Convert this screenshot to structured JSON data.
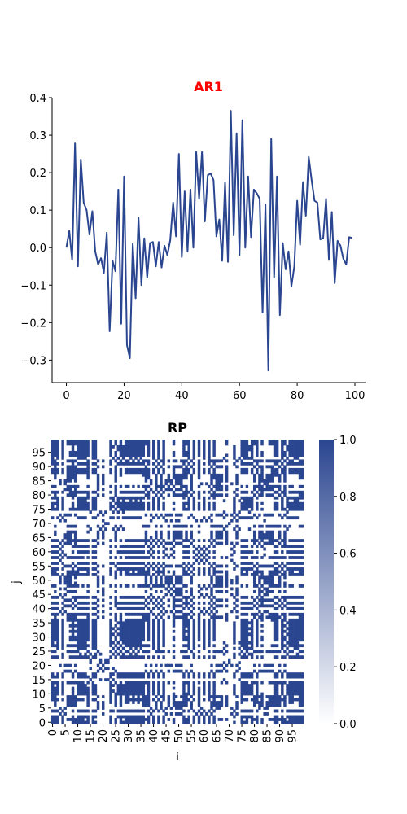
{
  "chart_data": [
    {
      "type": "line",
      "title": "AR1",
      "title_color": "#ff0000",
      "line_color": "#2b4690",
      "xlabel": "",
      "ylabel": "",
      "xlim": [
        -4.95,
        103.95
      ],
      "ylim": [
        -0.36,
        0.4
      ],
      "xticks": [
        0,
        20,
        40,
        60,
        80,
        100
      ],
      "yticks": [
        -0.3,
        -0.2,
        -0.1,
        0.0,
        0.1,
        0.2,
        0.3,
        0.4
      ],
      "ytick_labels": [
        "−0.3",
        "−0.2",
        "−0.1",
        "0.0",
        "0.1",
        "0.2",
        "0.3",
        "0.4"
      ],
      "grid": false,
      "spines": "left-bottom",
      "x": [
        0,
        1,
        2,
        3,
        4,
        5,
        6,
        7,
        8,
        9,
        10,
        11,
        12,
        13,
        14,
        15,
        16,
        17,
        18,
        19,
        20,
        21,
        22,
        23,
        24,
        25,
        26,
        27,
        28,
        29,
        30,
        31,
        32,
        33,
        34,
        35,
        36,
        37,
        38,
        39,
        40,
        41,
        42,
        43,
        44,
        45,
        46,
        47,
        48,
        49,
        50,
        51,
        52,
        53,
        54,
        55,
        56,
        57,
        58,
        59,
        60,
        61,
        62,
        63,
        64,
        65,
        66,
        67,
        68,
        69,
        70,
        71,
        72,
        73,
        74,
        75,
        76,
        77,
        78,
        79,
        80,
        81,
        82,
        83,
        84,
        85,
        86,
        87,
        88,
        89,
        90,
        91,
        92,
        93,
        94,
        95,
        96,
        97,
        98,
        99
      ],
      "y": [
        0.0,
        0.045,
        -0.033,
        0.278,
        -0.05,
        0.235,
        0.12,
        0.1,
        0.035,
        0.097,
        -0.01,
        -0.045,
        -0.028,
        -0.067,
        0.04,
        -0.223,
        -0.035,
        -0.063,
        0.155,
        -0.203,
        0.19,
        -0.26,
        -0.295,
        0.01,
        -0.135,
        0.08,
        -0.1,
        0.025,
        -0.08,
        0.012,
        0.015,
        -0.05,
        0.015,
        -0.053,
        0.005,
        -0.02,
        0.02,
        0.12,
        0.03,
        0.25,
        -0.025,
        0.15,
        -0.01,
        0.155,
        0.0,
        0.255,
        0.13,
        0.255,
        0.07,
        0.193,
        0.198,
        0.18,
        0.03,
        0.075,
        -0.035,
        0.173,
        -0.038,
        0.365,
        0.033,
        0.305,
        -0.02,
        0.34,
        0.0,
        0.19,
        0.028,
        0.155,
        0.145,
        0.13,
        -0.173,
        0.115,
        -0.328,
        0.29,
        -0.08,
        0.19,
        -0.18,
        0.012,
        -0.058,
        -0.01,
        -0.103,
        -0.05,
        0.125,
        0.008,
        0.175,
        0.085,
        0.242,
        0.18,
        0.125,
        0.12,
        0.022,
        0.025,
        0.13,
        -0.033,
        0.095,
        -0.095,
        0.018,
        0.005,
        -0.03,
        -0.045,
        0.028,
        0.026
      ]
    },
    {
      "type": "heatmap",
      "title": "RP",
      "title_color": "#ff0000",
      "xlabel": "i",
      "ylabel": "j",
      "size": 100,
      "xtick_labels": [
        "0",
        "5",
        "10",
        "15",
        "20",
        "25",
        "30",
        "35",
        "40",
        "45",
        "50",
        "55",
        "60",
        "65",
        "70",
        "75",
        "80",
        "85",
        "90",
        "95"
      ],
      "ytick_labels": [
        "0",
        "5",
        "10",
        "15",
        "20",
        "25",
        "30",
        "35",
        "40",
        "45",
        "50",
        "55",
        "60",
        "65",
        "70",
        "75",
        "80",
        "85",
        "90",
        "95"
      ],
      "colorbar_ticks": [
        0.0,
        0.2,
        0.4,
        0.6,
        0.8,
        1.0
      ],
      "colorbar_tick_labels": [
        "0.0",
        "0.2",
        "0.4",
        "0.6",
        "0.8",
        "1.0"
      ],
      "vmin": 0,
      "vmax": 1,
      "color_low": "#ffffff",
      "color_high": "#2b4690",
      "threshold": 0.1,
      "note": "cell (i,j) = 1 when |AR1[i] - AR1[j]| < threshold"
    }
  ]
}
